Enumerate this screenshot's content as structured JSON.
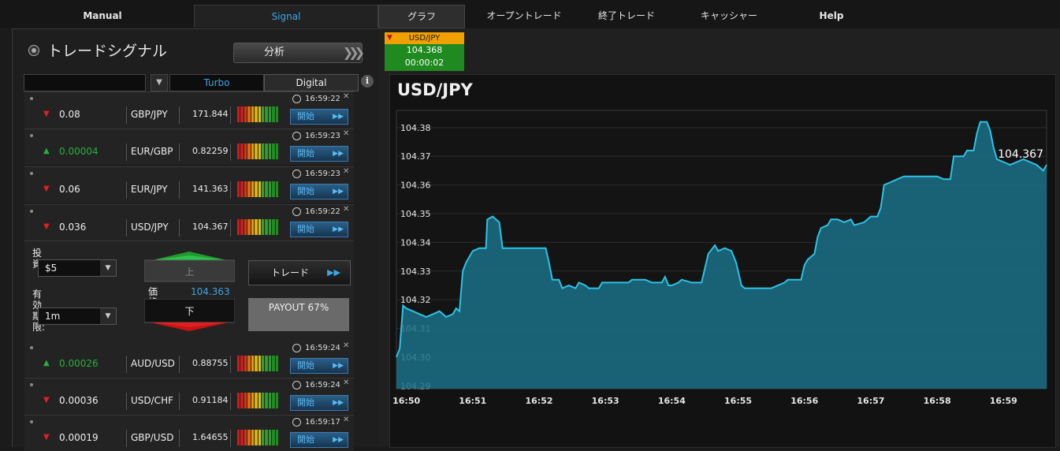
{
  "nav": {
    "manual": "Manual",
    "signal": "Signal",
    "graph": "グラフ",
    "open_trades": "オープントレード",
    "closed_trades": "終了トレード",
    "cashier": "キャッシャー",
    "help": "Help"
  },
  "signals_panel": {
    "title": "トレードシグナル",
    "analysis_button": "分析",
    "filter_turbo": "Turbo",
    "filter_digital": "Digital",
    "info_icon": "i"
  },
  "signals": [
    {
      "direction": "down",
      "change": "0.08",
      "pair": "GBP/JPY",
      "price": "171.844",
      "time": "16:59:22",
      "start": "開始"
    },
    {
      "direction": "up",
      "change": "0.00004",
      "pair": "EUR/GBP",
      "price": "0.82259",
      "time": "16:59:23",
      "start": "開始"
    },
    {
      "direction": "down",
      "change": "0.06",
      "pair": "EUR/JPY",
      "price": "141.363",
      "time": "16:59:23",
      "start": "開始"
    },
    {
      "direction": "down",
      "change": "0.036",
      "pair": "USD/JPY",
      "price": "104.367",
      "time": "16:59:22",
      "start": "開始"
    },
    {
      "direction": "up",
      "change": "0.00026",
      "pair": "AUD/USD",
      "price": "0.88755",
      "time": "16:59:24",
      "start": "開始"
    },
    {
      "direction": "down",
      "change": "0.00036",
      "pair": "USD/CHF",
      "price": "0.91184",
      "time": "16:59:24",
      "start": "開始"
    },
    {
      "direction": "down",
      "change": "0.00019",
      "pair": "GBP/USD",
      "price": "1.64655",
      "time": "16:59:17",
      "start": "開始"
    }
  ],
  "trade_form": {
    "invest_label_1": "投",
    "invest_label_2": "資:",
    "invest_value": "$5",
    "expiry_label_1": "有",
    "expiry_label_2": "効",
    "expiry_label_3": "期",
    "expiry_label_4": "限:",
    "expiry_value": "1m",
    "up_label": "上",
    "down_label": "下",
    "price_label_1": "価",
    "price_label_2": "格:",
    "price_value": "104.363",
    "trade_button": "トレード",
    "payout": "PAYOUT 67%"
  },
  "ticker": {
    "pair": "USD/JPY",
    "price": "104.368",
    "timer": "00:00:02"
  },
  "chart_data": {
    "type": "area",
    "title": "USD/JPY",
    "current_value_label": "104.367",
    "xlabel": "",
    "ylabel": "",
    "x_ticks": [
      "16:50",
      "16:51",
      "16:52",
      "16:53",
      "16:54",
      "16:55",
      "16:56",
      "16:57",
      "16:58",
      "16:59"
    ],
    "y_ticks": [
      "104.29",
      "104.30",
      "104.31",
      "104.32",
      "104.33",
      "104.34",
      "104.35",
      "104.36",
      "104.37",
      "104.38"
    ],
    "ylim": [
      104.289,
      104.386
    ],
    "xlim_minutes": [
      49.85,
      59.65
    ],
    "points_minutes_values": [
      [
        49.85,
        104.3
      ],
      [
        49.9,
        104.303
      ],
      [
        49.95,
        104.318
      ],
      [
        50.0,
        104.317
      ],
      [
        50.1,
        104.316
      ],
      [
        50.2,
        104.315
      ],
      [
        50.3,
        104.314
      ],
      [
        50.4,
        104.315
      ],
      [
        50.5,
        104.316
      ],
      [
        50.6,
        104.314
      ],
      [
        50.7,
        104.315
      ],
      [
        50.75,
        104.317
      ],
      [
        50.8,
        104.316
      ],
      [
        50.85,
        104.33
      ],
      [
        50.9,
        104.333
      ],
      [
        51.0,
        104.337
      ],
      [
        51.1,
        104.338
      ],
      [
        51.2,
        104.338
      ],
      [
        51.22,
        104.348
      ],
      [
        51.3,
        104.349
      ],
      [
        51.4,
        104.347
      ],
      [
        51.45,
        104.338
      ],
      [
        51.6,
        104.338
      ],
      [
        51.8,
        104.338
      ],
      [
        52.0,
        104.338
      ],
      [
        52.1,
        104.338
      ],
      [
        52.15,
        104.333
      ],
      [
        52.2,
        104.327
      ],
      [
        52.3,
        104.327
      ],
      [
        52.35,
        104.324
      ],
      [
        52.45,
        104.325
      ],
      [
        52.55,
        104.324
      ],
      [
        52.6,
        104.326
      ],
      [
        52.7,
        104.325
      ],
      [
        52.75,
        104.324
      ],
      [
        52.9,
        104.324
      ],
      [
        52.95,
        104.326
      ],
      [
        53.2,
        104.326
      ],
      [
        53.35,
        104.326
      ],
      [
        53.4,
        104.327
      ],
      [
        53.6,
        104.327
      ],
      [
        53.7,
        104.326
      ],
      [
        53.85,
        104.326
      ],
      [
        53.9,
        104.328
      ],
      [
        53.95,
        104.325
      ],
      [
        54.0,
        104.325
      ],
      [
        54.1,
        104.326
      ],
      [
        54.15,
        104.327
      ],
      [
        54.3,
        104.326
      ],
      [
        54.45,
        104.326
      ],
      [
        54.55,
        104.336
      ],
      [
        54.65,
        104.339
      ],
      [
        54.7,
        104.337
      ],
      [
        54.8,
        104.338
      ],
      [
        54.9,
        104.337
      ],
      [
        54.97,
        104.333
      ],
      [
        55.05,
        104.325
      ],
      [
        55.1,
        104.324
      ],
      [
        55.3,
        104.324
      ],
      [
        55.5,
        104.324
      ],
      [
        55.7,
        104.326
      ],
      [
        55.75,
        104.327
      ],
      [
        55.95,
        104.327
      ],
      [
        56.0,
        104.332
      ],
      [
        56.05,
        104.334
      ],
      [
        56.15,
        104.336
      ],
      [
        56.2,
        104.342
      ],
      [
        56.25,
        104.345
      ],
      [
        56.35,
        104.346
      ],
      [
        56.4,
        104.348
      ],
      [
        56.5,
        104.348
      ],
      [
        56.6,
        104.347
      ],
      [
        56.7,
        104.348
      ],
      [
        56.75,
        104.346
      ],
      [
        56.9,
        104.347
      ],
      [
        57.0,
        104.349
      ],
      [
        57.1,
        104.349
      ],
      [
        57.15,
        104.352
      ],
      [
        57.2,
        104.36
      ],
      [
        57.3,
        104.361
      ],
      [
        57.4,
        104.362
      ],
      [
        57.5,
        104.363
      ],
      [
        57.7,
        104.363
      ],
      [
        57.9,
        104.363
      ],
      [
        58.0,
        104.363
      ],
      [
        58.1,
        104.362
      ],
      [
        58.2,
        104.362
      ],
      [
        58.25,
        104.37
      ],
      [
        58.4,
        104.37
      ],
      [
        58.45,
        104.372
      ],
      [
        58.55,
        104.372
      ],
      [
        58.6,
        104.378
      ],
      [
        58.65,
        104.382
      ],
      [
        58.75,
        104.382
      ],
      [
        58.8,
        104.379
      ],
      [
        58.85,
        104.373
      ],
      [
        58.9,
        104.369
      ],
      [
        59.0,
        104.368
      ],
      [
        59.1,
        104.367
      ],
      [
        59.2,
        104.368
      ],
      [
        59.3,
        104.369
      ],
      [
        59.4,
        104.368
      ],
      [
        59.5,
        104.367
      ],
      [
        59.6,
        104.365
      ],
      [
        59.65,
        104.367
      ]
    ],
    "line_color": "#2cc3e6",
    "fill_color": "#1a6f86"
  },
  "colors": {
    "accent_blue": "#3aa7e6",
    "down_red": "#e02020",
    "up_green": "#27b03a",
    "ticker_orange": "#f0a000",
    "ticker_green": "#1f8a1f"
  }
}
